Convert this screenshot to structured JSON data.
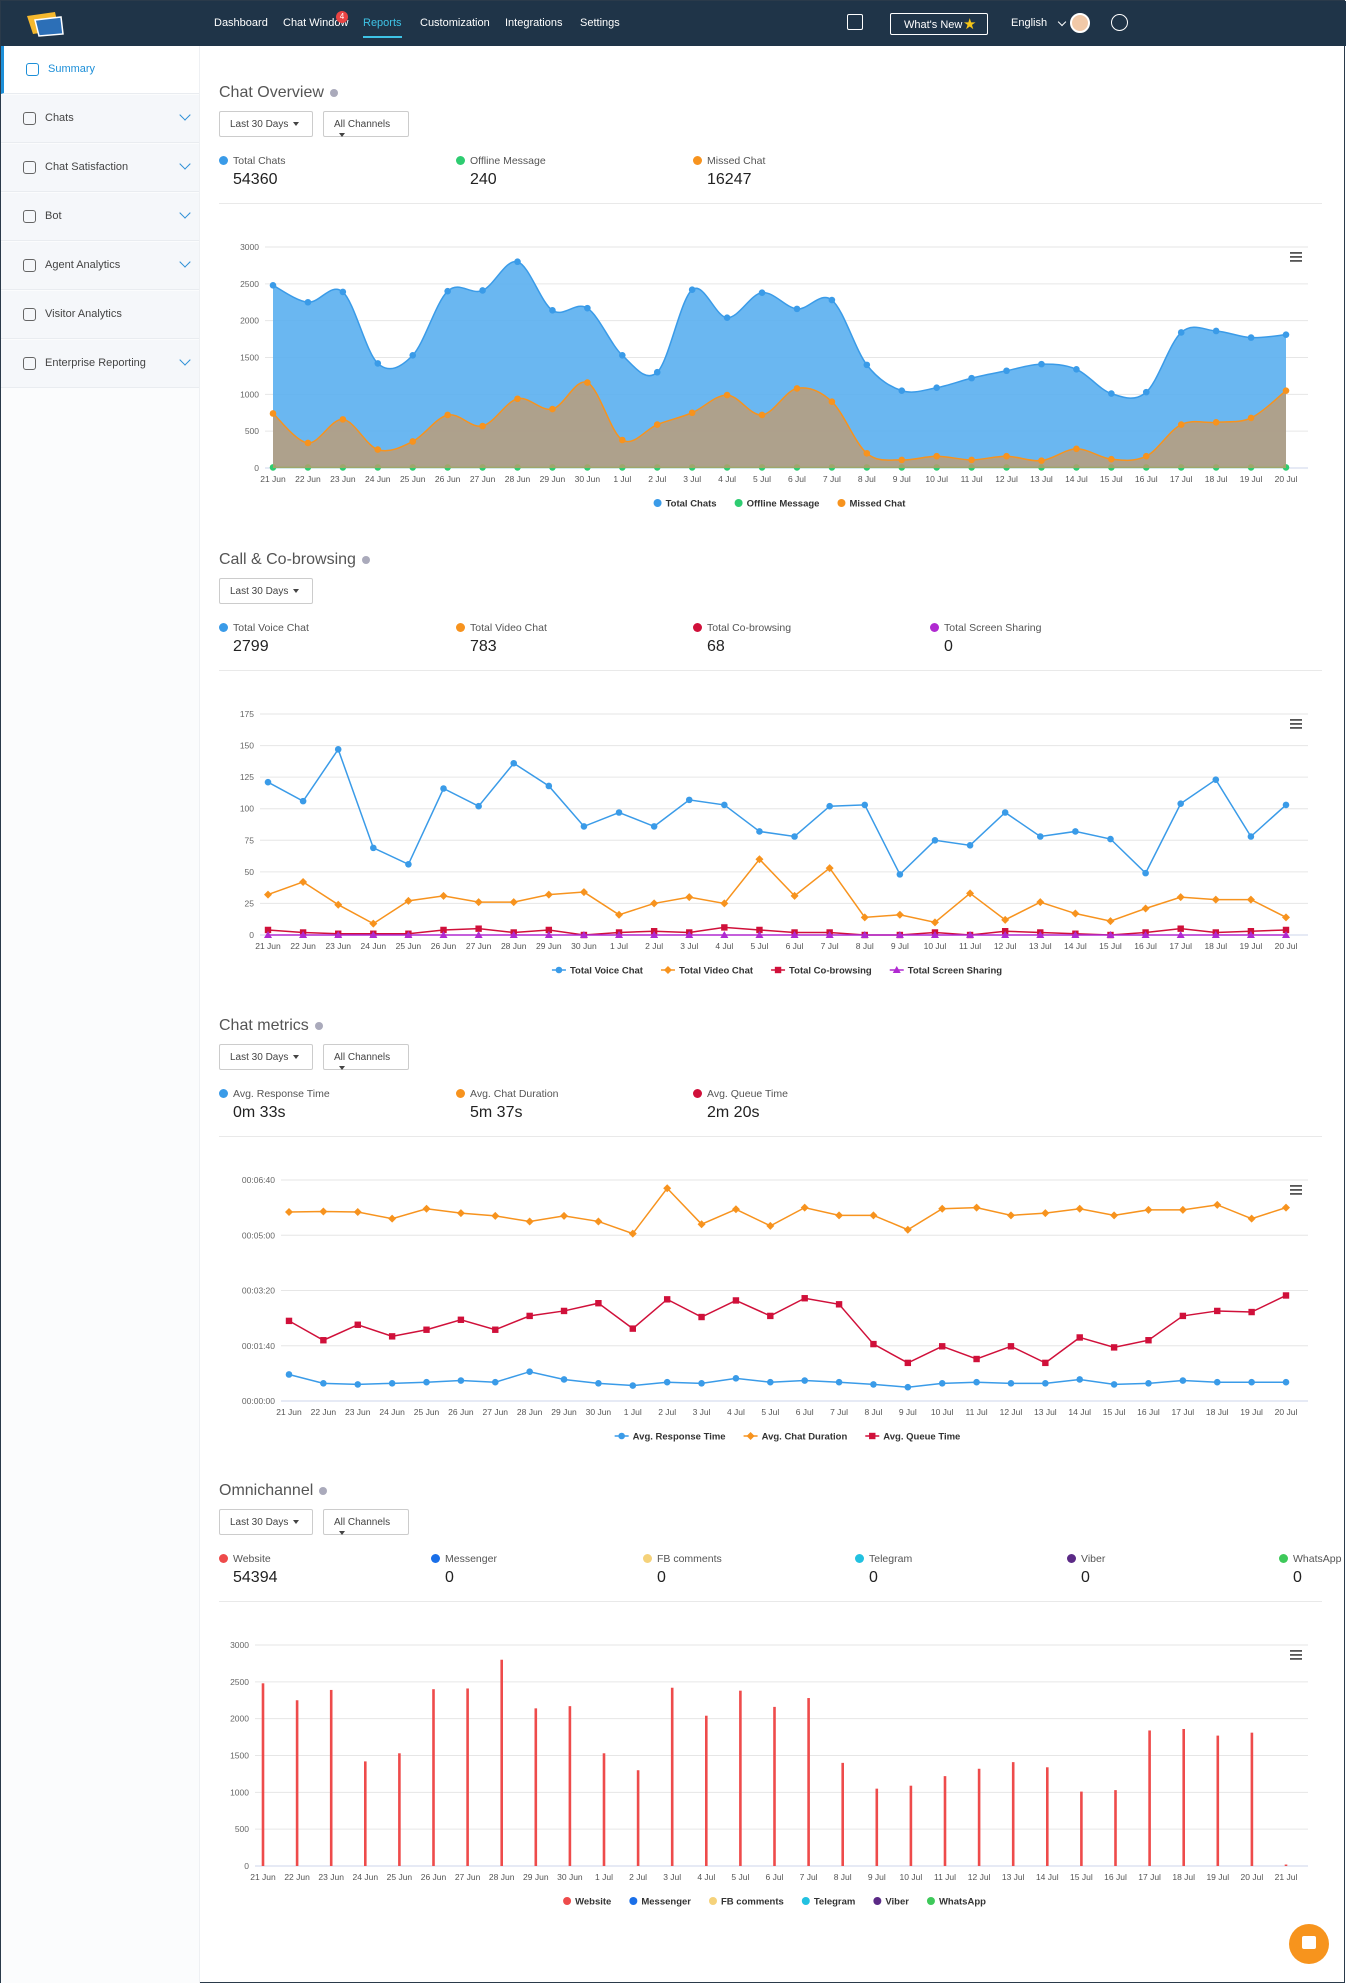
{
  "nav": {
    "items": [
      "Dashboard",
      "Chat Window",
      "Reports",
      "Customization",
      "Integrations",
      "Settings"
    ],
    "badge": 4,
    "whats_new": "What's New",
    "language": "English"
  },
  "sidebar": [
    "Summary",
    "Chats",
    "Chat Satisfaction",
    "Bot",
    "Agent Analytics",
    "Visitor Analytics",
    "Enterprise Reporting"
  ],
  "sections": [
    {
      "title": "Chat Overview",
      "filters": [
        "Last 30 Days",
        "All Channels"
      ],
      "stats": [
        {
          "label": "Total Chats",
          "value": 54360,
          "color": "#3a9be8"
        },
        {
          "label": "Offline Message",
          "value": 240,
          "color": "#2ecc71"
        },
        {
          "label": "Missed Chat",
          "value": 16247,
          "color": "#f7931e"
        }
      ]
    },
    {
      "title": "Call & Co-browsing",
      "filters": [
        "Last 30 Days"
      ],
      "stats": [
        {
          "label": "Total Voice Chat",
          "value": 2799,
          "color": "#3a9be8"
        },
        {
          "label": "Total Video Chat",
          "value": 783,
          "color": "#f7931e"
        },
        {
          "label": "Total Co-browsing",
          "value": 68,
          "color": "#d0103a"
        },
        {
          "label": "Total Screen Sharing",
          "value": 0,
          "color": "#b02ad1"
        }
      ]
    },
    {
      "title": "Chat metrics",
      "filters": [
        "Last 30 Days",
        "All Channels"
      ],
      "stats": [
        {
          "label": "Avg. Response Time",
          "value": "0m 33s",
          "color": "#3a9be8"
        },
        {
          "label": "Avg. Chat Duration",
          "value": "5m 37s",
          "color": "#f7931e"
        },
        {
          "label": "Avg. Queue Time",
          "value": "2m 20s",
          "color": "#d0103a"
        }
      ]
    },
    {
      "title": "Omnichannel",
      "filters": [
        "Last 30 Days",
        "All Channels"
      ],
      "stats": [
        {
          "label": "Website",
          "value": 54394,
          "color": "#ee4b4b"
        },
        {
          "label": "Messenger",
          "value": 0,
          "color": "#1a6fe8"
        },
        {
          "label": "FB comments",
          "value": 0,
          "color": "#f5d27a"
        },
        {
          "label": "Telegram",
          "value": 0,
          "color": "#22c1e0"
        },
        {
          "label": "Viber",
          "value": 0,
          "color": "#5b2a86"
        },
        {
          "label": "WhatsApp",
          "value": 0,
          "color": "#3ec95a"
        }
      ]
    }
  ],
  "chart_data": [
    {
      "type": "area",
      "categories": [
        "21 Jun",
        "22 Jun",
        "23 Jun",
        "24 Jun",
        "25 Jun",
        "26 Jun",
        "27 Jun",
        "28 Jun",
        "29 Jun",
        "30 Jun",
        "1 Jul",
        "2 Jul",
        "3 Jul",
        "4 Jul",
        "5 Jul",
        "6 Jul",
        "7 Jul",
        "8 Jul",
        "9 Jul",
        "10 Jul",
        "11 Jul",
        "12 Jul",
        "13 Jul",
        "14 Jul",
        "15 Jul",
        "16 Jul",
        "17 Jul",
        "18 Jul",
        "19 Jul",
        "20 Jul"
      ],
      "ylim": [
        0,
        3000
      ],
      "yticks": [
        0,
        500,
        1000,
        1500,
        2000,
        2500,
        3000
      ],
      "grid": true,
      "smooth": true,
      "series": [
        {
          "name": "Total Chats",
          "color": "#3a9be8",
          "fill": "#5aaff0",
          "marker": "circle",
          "values": [
            2480,
            2250,
            2390,
            1420,
            1530,
            2400,
            2410,
            2800,
            2140,
            2170,
            1530,
            1300,
            2420,
            2040,
            2380,
            2160,
            2280,
            1400,
            1050,
            1090,
            1220,
            1320,
            1410,
            1340,
            1010,
            1030,
            1840,
            1860,
            1770,
            1810
          ]
        },
        {
          "name": "Offline Message",
          "color": "#2ecc71",
          "fill": "#2ecc71",
          "marker": "circle",
          "values": [
            8,
            8,
            8,
            8,
            8,
            8,
            8,
            8,
            8,
            8,
            8,
            8,
            8,
            8,
            8,
            8,
            8,
            8,
            8,
            8,
            8,
            8,
            8,
            8,
            8,
            8,
            8,
            8,
            8,
            8
          ]
        },
        {
          "name": "Missed Chat",
          "color": "#f7931e",
          "fill": "#c69a6a",
          "marker": "circle",
          "values": [
            740,
            340,
            660,
            250,
            360,
            720,
            570,
            940,
            800,
            1160,
            380,
            590,
            750,
            990,
            720,
            1080,
            900,
            200,
            110,
            160,
            110,
            160,
            100,
            260,
            120,
            160,
            590,
            620,
            680,
            1050
          ]
        }
      ]
    },
    {
      "type": "line",
      "categories": [
        "21 Jun",
        "22 Jun",
        "23 Jun",
        "24 Jun",
        "25 Jun",
        "26 Jun",
        "27 Jun",
        "28 Jun",
        "29 Jun",
        "30 Jun",
        "1 Jul",
        "2 Jul",
        "3 Jul",
        "4 Jul",
        "5 Jul",
        "6 Jul",
        "7 Jul",
        "8 Jul",
        "9 Jul",
        "10 Jul",
        "11 Jul",
        "12 Jul",
        "13 Jul",
        "14 Jul",
        "15 Jul",
        "16 Jul",
        "17 Jul",
        "18 Jul",
        "19 Jul",
        "20 Jul"
      ],
      "ylim": [
        0,
        175
      ],
      "yticks": [
        0,
        25,
        50,
        75,
        100,
        125,
        150,
        175
      ],
      "grid": true,
      "series": [
        {
          "name": "Total Voice Chat",
          "color": "#3a9be8",
          "marker": "circle",
          "values": [
            121,
            106,
            147,
            69,
            56,
            116,
            102,
            136,
            118,
            86,
            97,
            86,
            107,
            103,
            82,
            78,
            102,
            103,
            48,
            75,
            71,
            97,
            78,
            82,
            76,
            49,
            104,
            123,
            78,
            103
          ]
        },
        {
          "name": "Total Video Chat",
          "color": "#f7931e",
          "marker": "diamond",
          "values": [
            32,
            42,
            24,
            9,
            27,
            31,
            26,
            26,
            32,
            34,
            16,
            25,
            30,
            25,
            60,
            31,
            53,
            14,
            16,
            10,
            33,
            12,
            26,
            17,
            11,
            21,
            30,
            28,
            28,
            14
          ]
        },
        {
          "name": "Total Co-browsing",
          "color": "#d0103a",
          "marker": "square",
          "values": [
            4,
            2,
            1,
            1,
            1,
            4,
            5,
            2,
            4,
            0,
            2,
            3,
            2,
            6,
            4,
            2,
            2,
            0,
            0,
            2,
            0,
            3,
            2,
            1,
            0,
            2,
            5,
            2,
            3,
            4
          ]
        },
        {
          "name": "Total Screen Sharing",
          "color": "#b02ad1",
          "marker": "triangle",
          "values": [
            0,
            0,
            0,
            0,
            0,
            0,
            0,
            0,
            0,
            0,
            0,
            0,
            0,
            0,
            0,
            0,
            0,
            0,
            0,
            0,
            0,
            0,
            0,
            0,
            0,
            0,
            0,
            0,
            0,
            0
          ]
        }
      ]
    },
    {
      "type": "line",
      "categories": [
        "21 Jun",
        "22 Jun",
        "23 Jun",
        "24 Jun",
        "25 Jun",
        "26 Jun",
        "27 Jun",
        "28 Jun",
        "29 Jun",
        "30 Jun",
        "1 Jul",
        "2 Jul",
        "3 Jul",
        "4 Jul",
        "5 Jul",
        "6 Jul",
        "7 Jul",
        "8 Jul",
        "9 Jul",
        "10 Jul",
        "11 Jul",
        "12 Jul",
        "13 Jul",
        "14 Jul",
        "15 Jul",
        "16 Jul",
        "17 Jul",
        "18 Jul",
        "19 Jul",
        "20 Jul"
      ],
      "ylim": [
        0,
        400
      ],
      "yticks": [
        {
          "value": 0,
          "label": "00:00:00"
        },
        {
          "value": 100,
          "label": "00:01:40"
        },
        {
          "value": 200,
          "label": "00:03:20"
        },
        {
          "value": 300,
          "label": "00:05:00"
        },
        {
          "value": 400,
          "label": "00:06:40"
        }
      ],
      "grid": true,
      "series": [
        {
          "name": "Avg. Response Time",
          "color": "#3a9be8",
          "marker": "circle",
          "values": [
            48,
            32,
            30,
            32,
            34,
            37,
            34,
            53,
            39,
            32,
            28,
            34,
            32,
            41,
            34,
            37,
            34,
            30,
            25,
            32,
            34,
            32,
            32,
            39,
            30,
            32,
            37,
            34,
            34,
            34
          ]
        },
        {
          "name": "Avg. Chat Duration",
          "color": "#f7931e",
          "marker": "diamond",
          "values": [
            342,
            343,
            342,
            330,
            348,
            340,
            335,
            325,
            335,
            325,
            303,
            385,
            320,
            347,
            317,
            350,
            336,
            336,
            310,
            348,
            350,
            336,
            340,
            348,
            336,
            346,
            346,
            355,
            330,
            350
          ]
        },
        {
          "name": "Avg. Queue Time",
          "color": "#d0103a",
          "marker": "square",
          "values": [
            145,
            110,
            138,
            117,
            129,
            147,
            129,
            154,
            163,
            177,
            131,
            184,
            152,
            182,
            154,
            186,
            175,
            103,
            69,
            99,
            76,
            99,
            69,
            115,
            97,
            110,
            154,
            163,
            161,
            191
          ]
        }
      ]
    },
    {
      "type": "bar",
      "categories": [
        "21 Jun",
        "22 Jun",
        "23 Jun",
        "24 Jun",
        "25 Jun",
        "26 Jun",
        "27 Jun",
        "28 Jun",
        "29 Jun",
        "30 Jun",
        "1 Jul",
        "2 Jul",
        "3 Jul",
        "4 Jul",
        "5 Jul",
        "6 Jul",
        "7 Jul",
        "8 Jul",
        "9 Jul",
        "10 Jul",
        "11 Jul",
        "12 Jul",
        "13 Jul",
        "14 Jul",
        "15 Jul",
        "16 Jul",
        "17 Jul",
        "18 Jul",
        "19 Jul",
        "20 Jul",
        "21 Jul"
      ],
      "ylim": [
        0,
        3000
      ],
      "yticks": [
        0,
        500,
        1000,
        1500,
        2000,
        2500,
        3000
      ],
      "grid": true,
      "series": [
        {
          "name": "Website",
          "color": "#ee4b4b",
          "marker": "circle",
          "values": [
            2480,
            2250,
            2390,
            1420,
            1530,
            2400,
            2410,
            2800,
            2140,
            2170,
            1530,
            1300,
            2420,
            2040,
            2380,
            2160,
            2280,
            1400,
            1050,
            1090,
            1220,
            1320,
            1410,
            1340,
            1010,
            1030,
            1840,
            1860,
            1770,
            1810,
            20
          ]
        },
        {
          "name": "Messenger",
          "color": "#1a6fe8",
          "marker": "circle",
          "values": [
            0,
            0,
            0,
            0,
            0,
            0,
            0,
            0,
            0,
            0,
            0,
            0,
            0,
            0,
            0,
            0,
            0,
            0,
            0,
            0,
            0,
            0,
            0,
            0,
            0,
            0,
            0,
            0,
            0,
            0,
            0
          ]
        },
        {
          "name": "FB comments",
          "color": "#f5d27a",
          "marker": "circle",
          "values": [
            0,
            0,
            0,
            0,
            0,
            0,
            0,
            0,
            0,
            0,
            0,
            0,
            0,
            0,
            0,
            0,
            0,
            0,
            0,
            0,
            0,
            0,
            0,
            0,
            0,
            0,
            0,
            0,
            0,
            0,
            0
          ]
        },
        {
          "name": "Telegram",
          "color": "#22c1e0",
          "marker": "circle",
          "values": [
            0,
            0,
            0,
            0,
            0,
            0,
            0,
            0,
            0,
            0,
            0,
            0,
            0,
            0,
            0,
            0,
            0,
            0,
            0,
            0,
            0,
            0,
            0,
            0,
            0,
            0,
            0,
            0,
            0,
            0,
            0
          ]
        },
        {
          "name": "Viber",
          "color": "#5b2a86",
          "marker": "circle",
          "values": [
            0,
            0,
            0,
            0,
            0,
            0,
            0,
            0,
            0,
            0,
            0,
            0,
            0,
            0,
            0,
            0,
            0,
            0,
            0,
            0,
            0,
            0,
            0,
            0,
            0,
            0,
            0,
            0,
            0,
            0,
            0
          ]
        },
        {
          "name": "WhatsApp",
          "color": "#3ec95a",
          "marker": "circle",
          "values": [
            0,
            0,
            0,
            0,
            0,
            0,
            0,
            0,
            0,
            0,
            0,
            0,
            0,
            0,
            0,
            0,
            0,
            0,
            0,
            0,
            0,
            0,
            0,
            0,
            0,
            0,
            0,
            0,
            0,
            0,
            0
          ]
        }
      ]
    }
  ]
}
